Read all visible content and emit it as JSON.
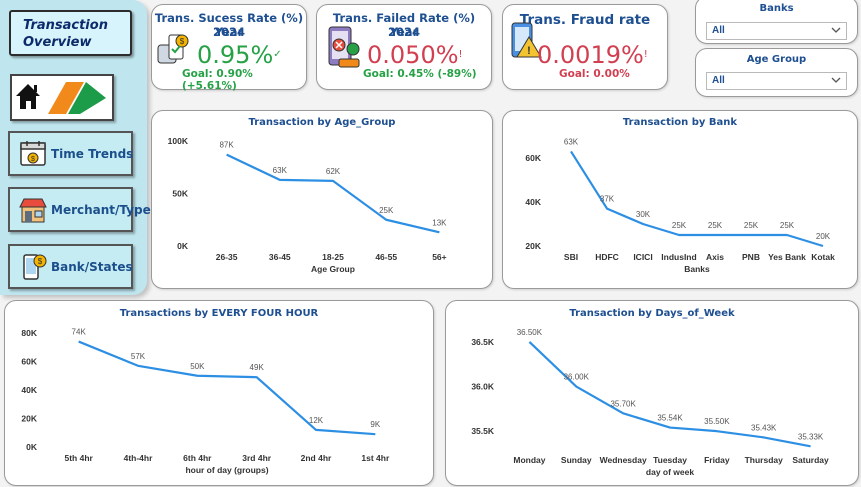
{
  "sidebar": {
    "overview_line1": "Transaction",
    "overview_line2": "Overview",
    "nav": [
      {
        "label": "Time Trends",
        "icon": "calendar-icon"
      },
      {
        "label": "Merchant/Type",
        "icon": "store-icon"
      },
      {
        "label": "Bank/States",
        "icon": "phone-payment-icon"
      }
    ]
  },
  "kpis": [
    {
      "title_line1": "Trans. Sucess Rate (%) Year",
      "title_line2": "2024",
      "value": "0.95%",
      "indicator": "✓",
      "goal": "Goal: 0.90% (+5.61%)",
      "value_color": "#26a146",
      "goal_color": "#26a146",
      "icon": "money-success-icon"
    },
    {
      "title_line1": "Trans. Failed Rate (%) Year",
      "title_line2": "2024",
      "value": "0.050%",
      "indicator": "!",
      "goal": "Goal: 0.45% (-89%)",
      "value_color": "#d13f50",
      "goal_color": "#26a146",
      "icon": "failed-payment-icon"
    },
    {
      "title_line1": "Trans. Fraud rate",
      "title_line2": "",
      "value": "0.0019%",
      "indicator": "!",
      "goal": "Goal: 0.00%",
      "value_color": "#d13f50",
      "goal_color": "#d13f50",
      "icon": "fraud-warning-icon"
    }
  ],
  "slicers": [
    {
      "title": "Banks",
      "selected": "All"
    },
    {
      "title": "Age Group",
      "selected": "All"
    }
  ],
  "colors": {
    "line": "#2d8fe4",
    "title": "#1e4f91"
  },
  "chart_data": [
    {
      "type": "line",
      "title": "Transaction by Age_Group",
      "xlabel": "Age Group",
      "ylabel": "",
      "categories": [
        "26-35",
        "36-45",
        "18-25",
        "46-55",
        "56+"
      ],
      "values": [
        87000,
        63000,
        62000,
        25000,
        13000
      ],
      "data_labels": [
        "87K",
        "63K",
        "62K",
        "25K",
        "13K"
      ],
      "yticks": [
        0,
        50000,
        100000
      ],
      "ytick_labels": [
        "0K",
        "50K",
        "100K"
      ],
      "ylim": [
        0,
        100000
      ]
    },
    {
      "type": "line",
      "title": "Transaction by Bank",
      "xlabel": "Banks",
      "ylabel": "",
      "categories": [
        "SBI",
        "HDFC",
        "ICICI",
        "IndusInd",
        "Axis",
        "PNB",
        "Yes Bank",
        "Kotak"
      ],
      "values": [
        63000,
        37000,
        30000,
        25000,
        25000,
        25000,
        25000,
        20000
      ],
      "data_labels": [
        "63K",
        "37K",
        "30K",
        "25K",
        "25K",
        "25K",
        "25K",
        "20K"
      ],
      "yticks": [
        20000,
        40000,
        60000
      ],
      "ytick_labels": [
        "20K",
        "40K",
        "60K"
      ],
      "ylim": [
        20000,
        65000
      ]
    },
    {
      "type": "line",
      "title": "Transactions by EVERY FOUR HOUR",
      "xlabel": "hour of day (groups)",
      "ylabel": "",
      "categories": [
        "5th 4hr",
        "4th-4hr",
        "6th 4hr",
        "3rd 4hr",
        "2nd 4hr",
        "1st 4hr"
      ],
      "values": [
        74000,
        57000,
        50000,
        49000,
        12000,
        9000
      ],
      "data_labels": [
        "74K",
        "57K",
        "50K",
        "49K",
        "12K",
        "9K"
      ],
      "yticks": [
        0,
        20000,
        40000,
        60000,
        80000
      ],
      "ytick_labels": [
        "0K",
        "20K",
        "40K",
        "60K",
        "80K"
      ],
      "ylim": [
        0,
        80000
      ]
    },
    {
      "type": "line",
      "title": "Transaction by Days_of_Week",
      "xlabel": "day of week",
      "ylabel": "",
      "categories": [
        "Monday",
        "Sunday",
        "Wednesday",
        "Tuesday",
        "Friday",
        "Thursday",
        "Saturday"
      ],
      "values": [
        36500,
        36000,
        35700,
        35540,
        35500,
        35430,
        35330
      ],
      "data_labels": [
        "36.50K",
        "36.00K",
        "35.70K",
        "35.54K",
        "35.50K",
        "35.43K",
        "35.33K"
      ],
      "yticks": [
        35500,
        36000,
        36500
      ],
      "ytick_labels": [
        "35.5K",
        "36.0K",
        "36.5K"
      ],
      "ylim": [
        35300,
        36600
      ]
    }
  ]
}
